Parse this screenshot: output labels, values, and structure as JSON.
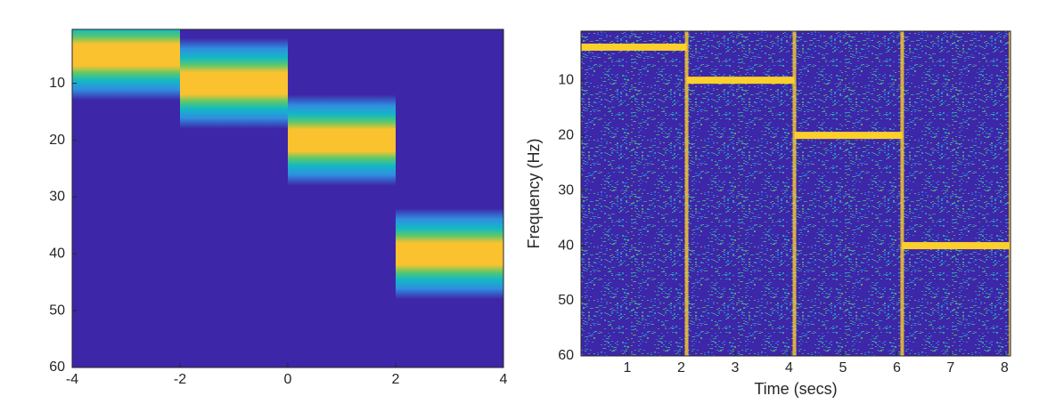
{
  "chart_data": [
    {
      "type": "heatmap",
      "background": "#3e26a8",
      "band_color": "#f9c22e",
      "segments": {
        "x_start": [
          -4,
          -2,
          0,
          2
        ],
        "x_end": [
          -2,
          0,
          2,
          4
        ],
        "values": [
          5,
          10,
          20,
          40
        ]
      },
      "xlim": [
        -4,
        4
      ],
      "xticks": [
        -4,
        -2,
        0,
        2,
        4
      ],
      "ylim": [
        0.5,
        60
      ],
      "yticks": [
        10,
        20,
        30,
        40,
        50,
        60
      ]
    },
    {
      "type": "heatmap",
      "background": "#3e26a8",
      "band_color": "#fcd02a",
      "xlabel": "Time (secs)",
      "ylabel": "Frequency (Hz)",
      "segments": {
        "x_start": [
          0.14,
          2.1,
          4.1,
          6.1
        ],
        "x_end": [
          2.1,
          4.1,
          6.1,
          8.11
        ],
        "values": [
          4,
          10,
          20,
          40
        ]
      },
      "xlim": [
        0.14,
        8.11
      ],
      "xticks": [
        1,
        2,
        3,
        4,
        5,
        6,
        7,
        8
      ],
      "ylim": [
        1.1,
        60
      ],
      "yticks": [
        10,
        20,
        30,
        40,
        50,
        60
      ]
    }
  ]
}
